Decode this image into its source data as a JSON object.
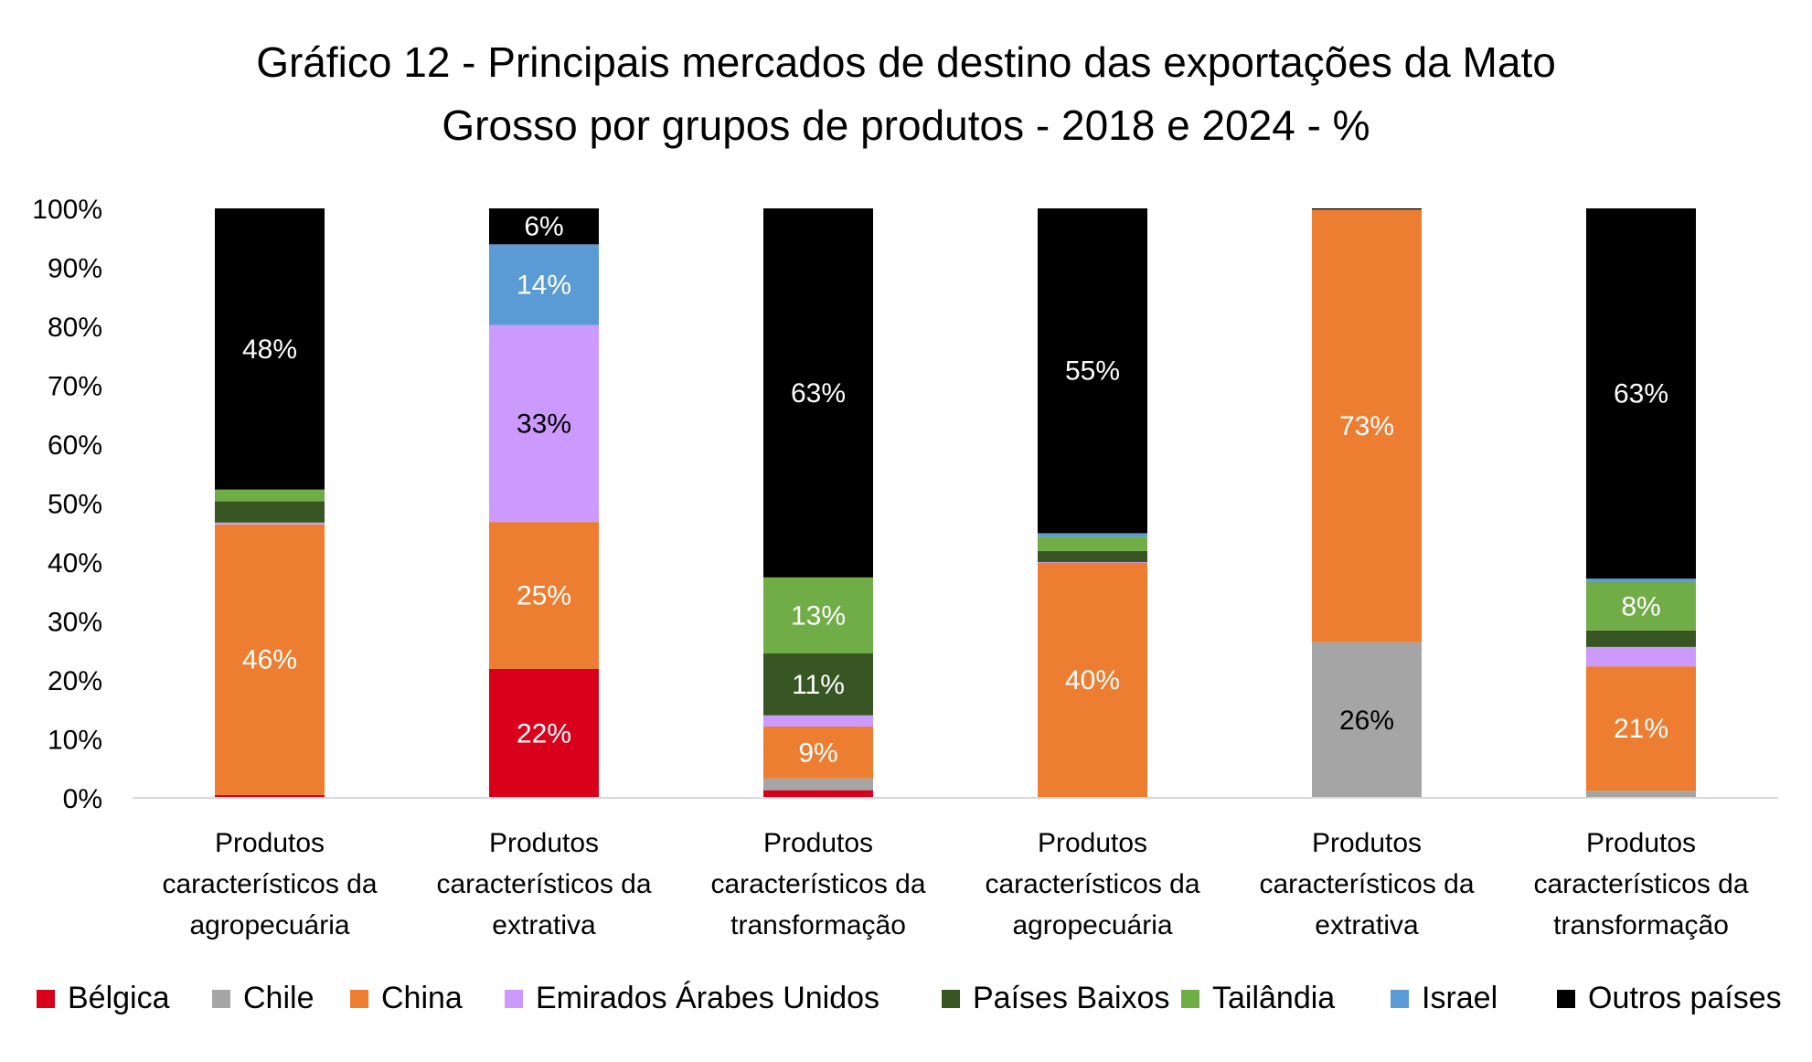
{
  "chart_data": {
    "type": "bar",
    "stacked": true,
    "title": [
      "Gráfico 12 - Principais mercados de destino das exportações da Mato",
      "Grosso por grupos de produtos - 2018 e 2024 - %"
    ],
    "xlabel": "",
    "ylabel": "",
    "ylim": [
      0,
      100
    ],
    "yticks": [
      "0%",
      "10%",
      "20%",
      "30%",
      "40%",
      "50%",
      "60%",
      "70%",
      "80%",
      "90%",
      "100%"
    ],
    "grid": false,
    "legend_position": "bottom",
    "categories": [
      [
        "Produtos",
        "característicos da",
        "agropecuária"
      ],
      [
        "Produtos",
        "característicos da",
        "extrativa"
      ],
      [
        "Produtos",
        "característicos da",
        "transformação"
      ],
      [
        "Produtos",
        "característicos da",
        "agropecuária"
      ],
      [
        "Produtos",
        "característicos da",
        "extrativa"
      ],
      [
        "Produtos",
        "característicos da",
        "transformação"
      ]
    ],
    "series": [
      {
        "name": "Bélgica",
        "color": "#D9001B",
        "values": [
          0.5,
          21.9,
          1.3,
          0,
          0,
          0
        ],
        "labels": [
          "",
          "22%",
          "",
          "",
          "",
          ""
        ],
        "label_color": "#FFFFFF"
      },
      {
        "name": "Chile",
        "color": "#A5A5A5",
        "values": [
          0,
          0,
          2.0,
          0,
          26.4,
          1.2
        ],
        "labels": [
          "",
          "",
          "",
          "",
          "26%",
          ""
        ],
        "label_color": "#000000"
      },
      {
        "name": "China",
        "color": "#ED7D31",
        "values": [
          45.9,
          24.9,
          8.8,
          39.9,
          73.4,
          21.1
        ],
        "labels": [
          "46%",
          "25%",
          "9%",
          "40%",
          "73%",
          "21%"
        ],
        "label_color": "#FFFFFF"
      },
      {
        "name": "Emirados Árabes Unidos",
        "color": "#CC99FF",
        "values": [
          0.3,
          33.4,
          1.9,
          0.1,
          0,
          3.3
        ],
        "labels": [
          "",
          "33%",
          "",
          "",
          "",
          ""
        ],
        "label_color": "#000000"
      },
      {
        "name": "Países Baixos",
        "color": "#375623",
        "values": [
          3.6,
          0,
          10.5,
          1.9,
          0,
          2.8
        ],
        "labels": [
          "",
          "",
          "11%",
          "",
          "",
          ""
        ],
        "label_color": "#FFFFFF"
      },
      {
        "name": "Tailândia",
        "color": "#70AD47",
        "values": [
          2.0,
          0,
          12.9,
          2.4,
          0,
          8.2
        ],
        "labels": [
          "",
          "",
          "13%",
          "",
          "",
          "8%"
        ],
        "label_color": "#FFFFFF"
      },
      {
        "name": "Israel",
        "color": "#5B9BD5",
        "values": [
          0,
          13.7,
          0,
          0.6,
          0,
          0.6
        ],
        "labels": [
          "",
          "14%",
          "",
          "",
          "",
          ""
        ],
        "label_color": "#FFFFFF"
      },
      {
        "name": "Outros países",
        "color": "#000000",
        "values": [
          47.7,
          6.1,
          62.6,
          55.1,
          0.2,
          62.8
        ],
        "labels": [
          "48%",
          "6%",
          "63%",
          "55%",
          "",
          "63%"
        ],
        "label_color": "#FFFFFF"
      }
    ]
  }
}
